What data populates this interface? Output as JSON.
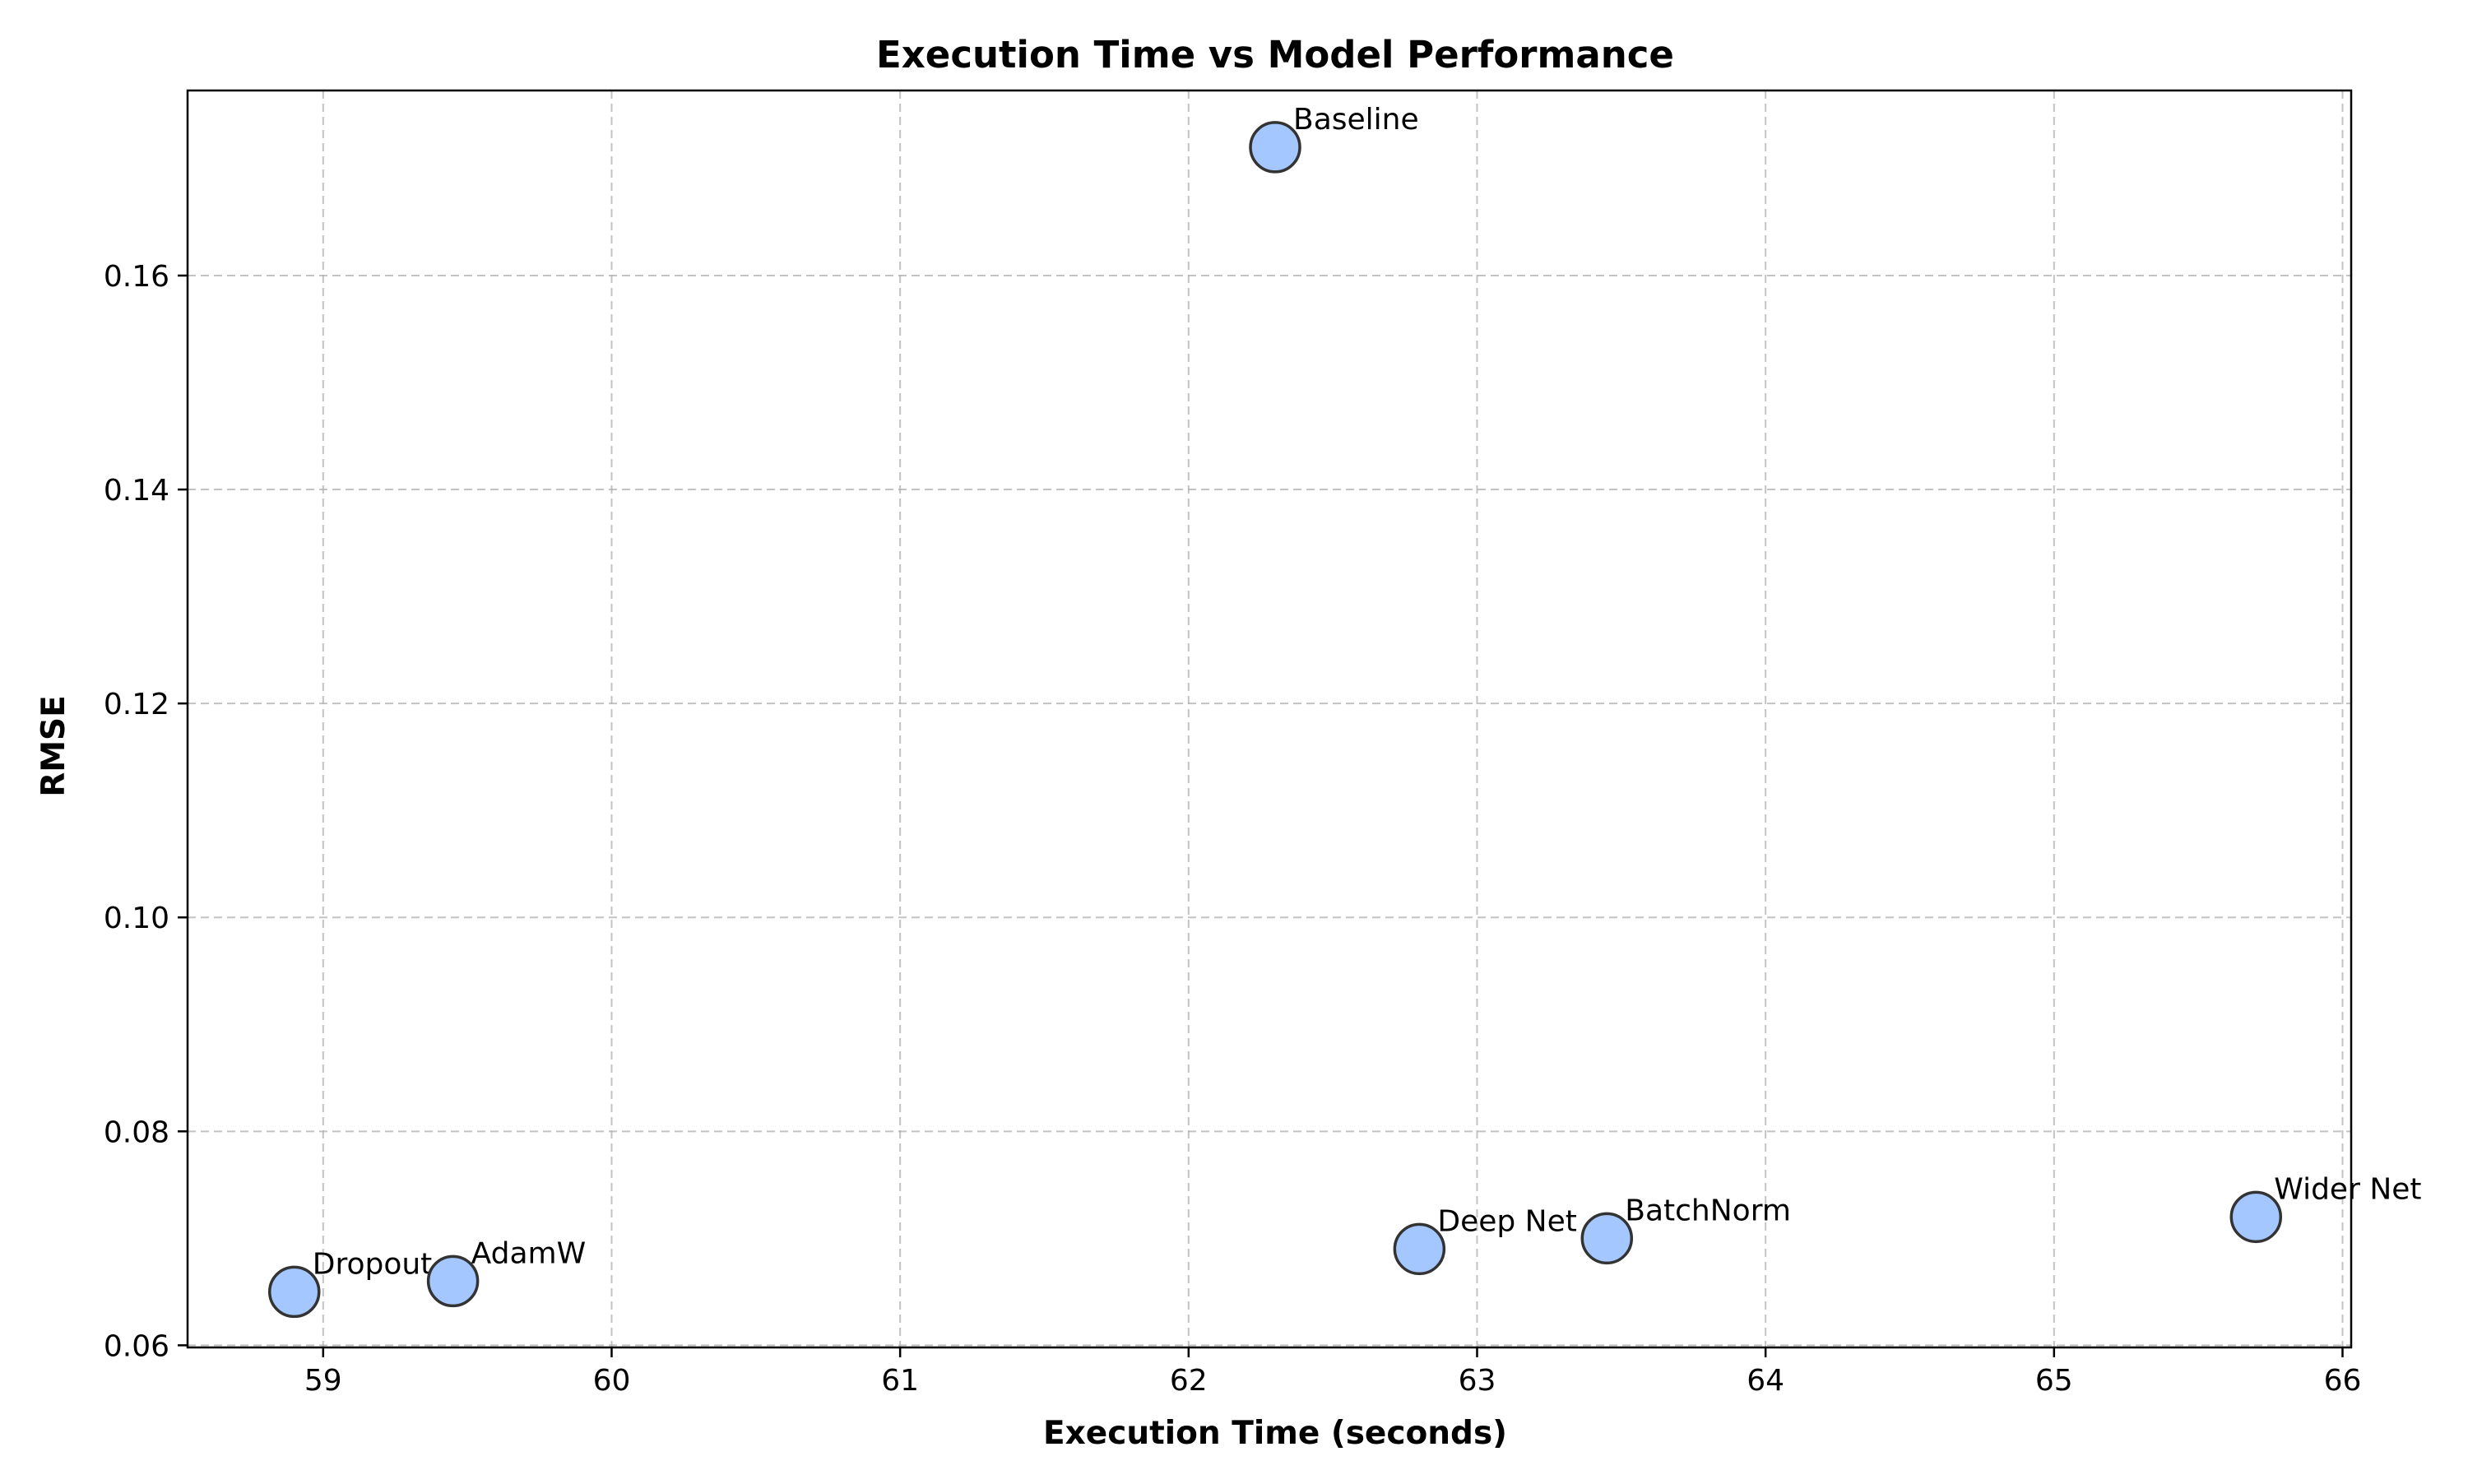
{
  "chart_data": {
    "type": "scatter",
    "title": "Execution Time vs Model Performance",
    "xlabel": "Execution Time (seconds)",
    "ylabel": "RMSE",
    "xlim": [
      58.53,
      66.03
    ],
    "ylim": [
      0.0598,
      0.1773
    ],
    "xticks": [
      59,
      60,
      61,
      62,
      63,
      64,
      65,
      66
    ],
    "yticks": [
      0.06,
      0.08,
      0.1,
      0.12,
      0.14,
      0.16
    ],
    "grid": true,
    "marker_color": "#a0c4ff",
    "marker_edge_color": "#333333",
    "points": [
      {
        "label": "Baseline",
        "x": 62.3,
        "y": 0.172
      },
      {
        "label": "Dropout",
        "x": 58.9,
        "y": 0.065
      },
      {
        "label": "AdamW",
        "x": 59.45,
        "y": 0.066
      },
      {
        "label": "Deep Net",
        "x": 62.8,
        "y": 0.069
      },
      {
        "label": "BatchNorm",
        "x": 63.45,
        "y": 0.07
      },
      {
        "label": "Wider Net",
        "x": 65.7,
        "y": 0.072
      }
    ]
  }
}
